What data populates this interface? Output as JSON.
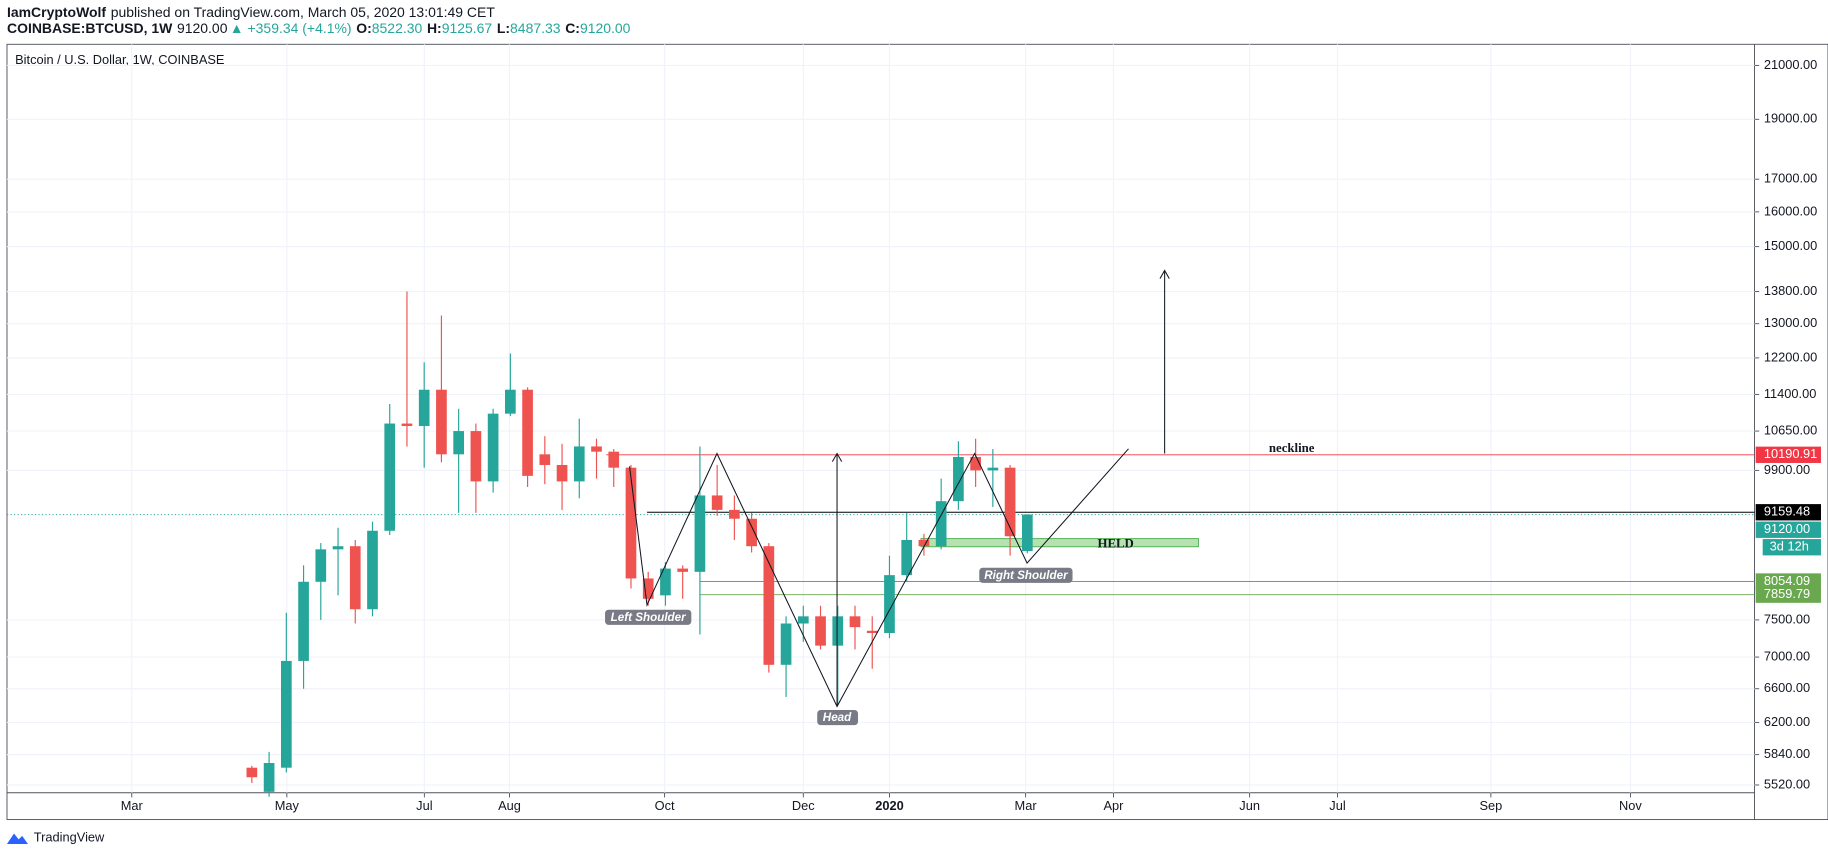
{
  "header": {
    "author": "IamCryptoWolf",
    "published": "published on TradingView.com, March 05, 2020 13:01:49 CET",
    "symbol": "COINBASE:BTCUSD, 1W",
    "price": "9120.00",
    "change": "▲ +359.34 (+4.1%)",
    "ohlc": [
      {
        "key": "O:",
        "value": "8522.30"
      },
      {
        "key": "H:",
        "value": "9125.67"
      },
      {
        "key": "L:",
        "value": "8487.33"
      },
      {
        "key": "C:",
        "value": "9120.00"
      }
    ]
  },
  "footer": {
    "brand": "TradingView"
  },
  "chart_data": {
    "type": "candlestick",
    "title": "Bitcoin / U.S. Dollar, 1W, COINBASE",
    "log_scale": true,
    "grid": true,
    "up_color": "#26a69a",
    "down_color": "#ef5350",
    "categories": [
      null,
      null,
      null,
      null,
      null,
      null,
      null,
      null,
      null,
      null,
      null,
      null,
      null,
      null,
      null,
      null,
      null,
      null,
      null,
      null,
      null,
      null,
      null,
      null,
      null,
      null,
      null,
      null,
      null,
      null,
      null,
      null,
      null,
      null,
      null,
      null,
      null,
      null,
      null,
      null,
      null,
      null,
      null,
      null,
      null,
      null
    ],
    "open": [
      5700,
      5450,
      5700,
      6950,
      8050,
      8550,
      8600,
      7650,
      8850,
      10800,
      10750,
      11500,
      10200,
      10650,
      9700,
      11000,
      11500,
      10200,
      10000,
      9700,
      10350,
      10250,
      9950,
      8100,
      7850,
      8250,
      8200,
      9450,
      9200,
      9050,
      8600,
      6900,
      7450,
      7550,
      7150,
      7550,
      7350,
      7320,
      8150,
      8700,
      8600,
      9350,
      10150,
      9900,
      9950,
      8522.3
    ],
    "high": [
      5720,
      5870,
      7600,
      8300,
      8650,
      8900,
      8700,
      9000,
      11200,
      13800,
      12100,
      13200,
      11100,
      10800,
      11100,
      12300,
      11550,
      10550,
      10400,
      10900,
      10500,
      10300,
      10000,
      8200,
      8350,
      8300,
      10350,
      10000,
      9450,
      9150,
      8650,
      7550,
      7700,
      7700,
      7700,
      7700,
      7550,
      8450,
      9150,
      8800,
      9750,
      10450,
      10500,
      10300,
      10000,
      9125.67
    ],
    "low": [
      5540,
      5400,
      5650,
      6600,
      7500,
      7850,
      7450,
      7550,
      8780,
      10350,
      9950,
      10050,
      9150,
      9150,
      9500,
      10950,
      9600,
      9650,
      9200,
      9400,
      9750,
      9600,
      7950,
      7700,
      7700,
      7800,
      7300,
      9100,
      8700,
      8500,
      6800,
      6500,
      7200,
      7100,
      6400,
      7100,
      6850,
      7250,
      8050,
      8450,
      8550,
      9200,
      9600,
      9250,
      8450,
      8487.33
    ],
    "close": [
      5600,
      5750,
      6950,
      8050,
      8550,
      8600,
      7650,
      8850,
      10800,
      10750,
      11500,
      10200,
      10650,
      9700,
      11000,
      11500,
      9800,
      10000,
      9700,
      10350,
      10250,
      9950,
      8100,
      7800,
      8250,
      8200,
      9450,
      9200,
      9050,
      8600,
      6900,
      7450,
      7550,
      7150,
      7550,
      7400,
      7320,
      8150,
      8700,
      8600,
      9350,
      10150,
      9900,
      9950,
      8760.66,
      9120
    ],
    "xlim": [
      -14.21,
      87.2
    ],
    "xticks": [
      {
        "value": -6.97,
        "label": "Mar"
      },
      {
        "value": 2.03,
        "label": "May"
      },
      {
        "value": 10.01,
        "label": "Jul"
      },
      {
        "value": 14.95,
        "label": "Aug"
      },
      {
        "value": 23.95,
        "label": "Oct"
      },
      {
        "value": 32.0,
        "label": "Dec"
      },
      {
        "value": 37.0,
        "label": "2020"
      },
      {
        "value": 44.9,
        "label": "Mar"
      },
      {
        "value": 50.0,
        "label": "Apr"
      },
      {
        "value": 57.9,
        "label": "Jun"
      },
      {
        "value": 63.0,
        "label": "Jul"
      },
      {
        "value": 71.9,
        "label": "Sep"
      },
      {
        "value": 80.0,
        "label": "Nov"
      }
    ],
    "ylim": [
      5441,
      21840
    ],
    "yticks": [
      {
        "value": 21000,
        "label": "21000.00"
      },
      {
        "value": 19000,
        "label": "19000.00"
      },
      {
        "value": 17000,
        "label": "17000.00"
      },
      {
        "value": 16000,
        "label": "16000.00"
      },
      {
        "value": 15000,
        "label": "15000.00"
      },
      {
        "value": 13800,
        "label": "13800.00"
      },
      {
        "value": 13000,
        "label": "13000.00"
      },
      {
        "value": 12200,
        "label": "12200.00"
      },
      {
        "value": 11400,
        "label": "11400.00"
      },
      {
        "value": 10650,
        "label": "10650.00"
      },
      {
        "value": 9900,
        "label": "9900.00"
      },
      {
        "value": 7500,
        "label": "7500.00"
      },
      {
        "value": 7000,
        "label": "7000.00"
      },
      {
        "value": 6600,
        "label": "6600.00"
      },
      {
        "value": 6200,
        "label": "6200.00"
      },
      {
        "value": 5840,
        "label": "5840.00"
      },
      {
        "value": 5520,
        "label": "5520.00"
      }
    ],
    "levels": [
      {
        "value": 10190.91,
        "label": "10190.91",
        "color": "#f23645"
      },
      {
        "value": 9159.48,
        "label": "9159.48",
        "color": "#000000"
      },
      {
        "value": 9120,
        "label": "9120.00",
        "color": "#26a69a"
      },
      {
        "value": 8054.09,
        "label": "8054.09",
        "color": "#6aa84f"
      },
      {
        "value": 7859.79,
        "label": "7859.79",
        "color": "#6aa84f"
      }
    ],
    "countdown": "3d 12h",
    "annotations": {
      "neckline": "neckline",
      "held": "HELD",
      "left_shoulder": "Left Shoulder",
      "head": "Head",
      "right_shoulder": "Right Shoulder"
    }
  }
}
